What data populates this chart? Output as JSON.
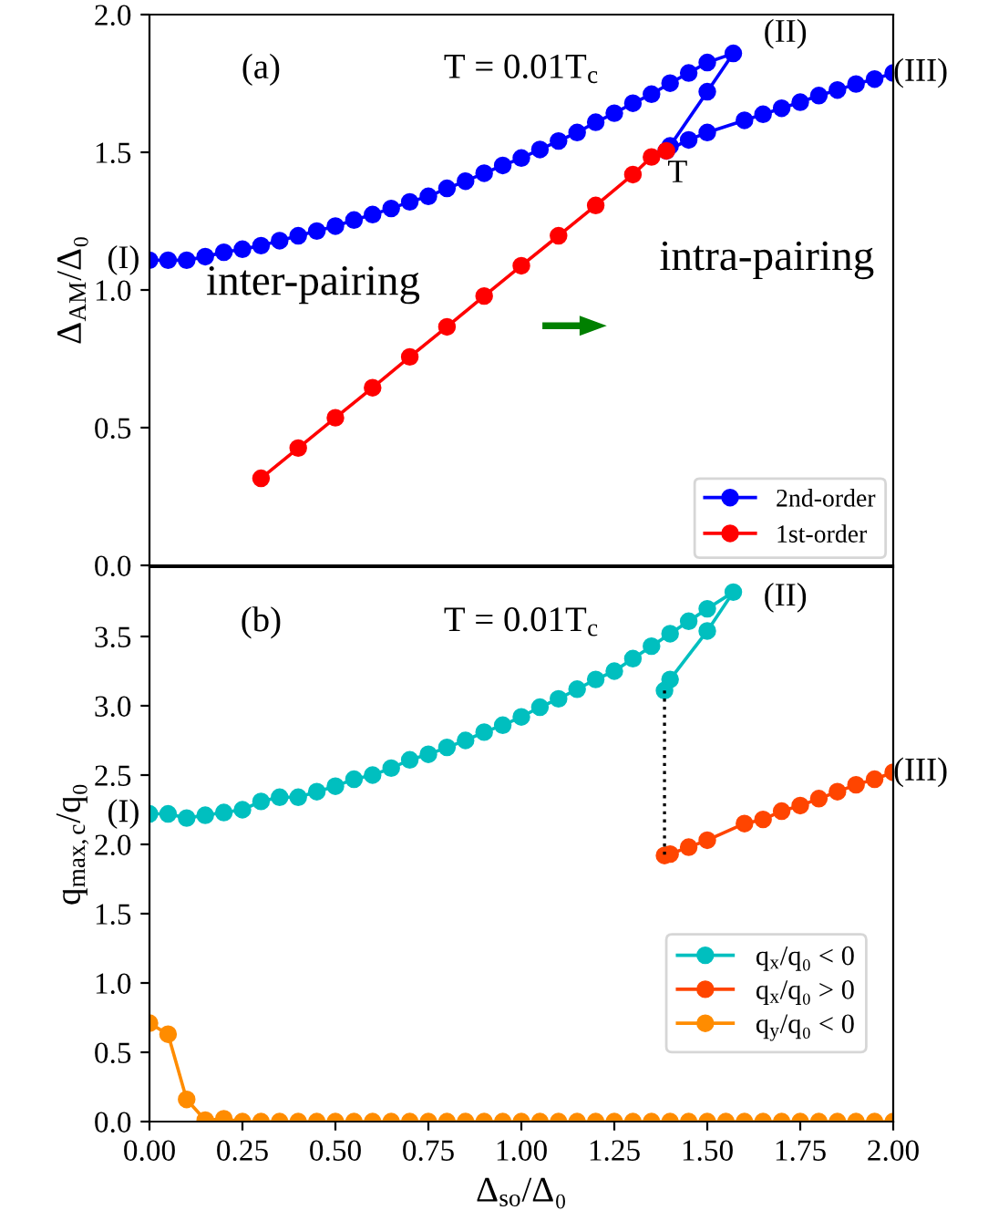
{
  "chart_data": [
    {
      "type": "line",
      "ylabel": "Δ$_{AM}$/Δ₀",
      "xlim": [
        0,
        2
      ],
      "ylim": [
        0,
        2
      ],
      "yticks": [
        {
          "value": 0,
          "label": "0.0"
        },
        {
          "value": 0.5,
          "label": "0.5"
        },
        {
          "value": 1,
          "label": "1.0"
        },
        {
          "value": 1.5,
          "label": "1.5"
        },
        {
          "value": 2,
          "label": "2.0"
        }
      ],
      "tick_labels": "y",
      "marker": "circle",
      "legend": "lower right",
      "grid": false,
      "series": [
        {
          "name": "2nd-order",
          "color": "#0000ff",
          "x": [
            0,
            0.05,
            0.1,
            0.15,
            0.2,
            0.25,
            0.3,
            0.35,
            0.4,
            0.45,
            0.5,
            0.55,
            0.6,
            0.65,
            0.7,
            0.75,
            0.8,
            0.85,
            0.9,
            0.95,
            1.0,
            1.05,
            1.1,
            1.15,
            1.2,
            1.25,
            1.3,
            1.35,
            1.4,
            1.45,
            1.5,
            1.57,
            1.5,
            1.4,
            1.39,
            1.45,
            1.5,
            1.6,
            1.65,
            1.7,
            1.75,
            1.8,
            1.85,
            1.9,
            1.95,
            2.0
          ],
          "values": [
            1.108,
            1.108,
            1.108,
            1.121,
            1.137,
            1.148,
            1.161,
            1.179,
            1.197,
            1.214,
            1.232,
            1.254,
            1.274,
            1.296,
            1.32,
            1.34,
            1.369,
            1.395,
            1.424,
            1.452,
            1.479,
            1.51,
            1.541,
            1.572,
            1.609,
            1.642,
            1.678,
            1.711,
            1.751,
            1.788,
            1.826,
            1.859,
            1.72,
            1.523,
            1.505,
            1.545,
            1.572,
            1.616,
            1.638,
            1.66,
            1.682,
            1.706,
            1.726,
            1.748,
            1.766,
            1.788
          ]
        },
        {
          "name": "1st-order",
          "color": "#ff0000",
          "x": [
            0.3,
            0.4,
            0.5,
            0.6,
            0.7,
            0.8,
            0.9,
            1.0,
            1.1,
            1.2,
            1.3,
            1.35,
            1.39
          ],
          "values": [
            0.316,
            0.426,
            0.536,
            0.645,
            0.757,
            0.866,
            0.978,
            1.088,
            1.197,
            1.307,
            1.419,
            1.483,
            1.505
          ]
        }
      ],
      "annotations": [
        "(a)",
        "T = 0.01T$_{c}$",
        "(II)",
        "T",
        "inter-pairing",
        "intra-pairing",
        "(I)",
        {
          "text": "(III)",
          "x": 2,
          "y": 1.788
        }
      ]
    },
    {
      "type": "line",
      "ylabel": "q$_{max,c}$/q₀",
      "xlabel": "Δ$_{so}$/Δ₀",
      "xlim": [
        0,
        2
      ],
      "ylim": [
        0,
        4
      ],
      "xticks": [
        {
          "value": 0,
          "label": "0.00"
        },
        {
          "value": 0.25,
          "label": "0.25"
        },
        {
          "value": 0.5,
          "label": "0.50"
        },
        {
          "value": 0.75,
          "label": "0.75"
        },
        {
          "value": 1,
          "label": "1.00"
        },
        {
          "value": 1.25,
          "label": "1.25"
        },
        {
          "value": 1.5,
          "label": "1.50"
        },
        {
          "value": 1.75,
          "label": "1.75"
        },
        {
          "value": 2,
          "label": "2.00"
        }
      ],
      "yticks": [
        {
          "value": 0,
          "label": "0.0"
        },
        {
          "value": 0.5,
          "label": "0.5"
        },
        {
          "value": 1,
          "label": "1.0"
        },
        {
          "value": 1.5,
          "label": "1.5"
        },
        {
          "value": 2,
          "label": "2.0"
        },
        {
          "value": 2.5,
          "label": "2.5"
        },
        {
          "value": 3,
          "label": "3.0"
        },
        {
          "value": 3.5,
          "label": "3.5"
        }
      ],
      "marker": "circle",
      "legend": "right",
      "grid": false,
      "series": [
        {
          "name": "q$_{x}$/q₀ < 0",
          "color": "#00bfbf",
          "x": [
            0,
            0.05,
            0.1,
            0.15,
            0.2,
            0.25,
            0.3,
            0.35,
            0.4,
            0.45,
            0.5,
            0.55,
            0.6,
            0.65,
            0.7,
            0.75,
            0.8,
            0.85,
            0.9,
            0.95,
            1.0,
            1.05,
            1.1,
            1.15,
            1.2,
            1.25,
            1.3,
            1.35,
            1.4,
            1.45,
            1.5,
            1.57,
            1.5,
            1.4,
            1.385
          ],
          "values": [
            2.22,
            2.22,
            2.19,
            2.21,
            2.23,
            2.25,
            2.31,
            2.34,
            2.34,
            2.38,
            2.42,
            2.47,
            2.5,
            2.55,
            2.61,
            2.65,
            2.7,
            2.75,
            2.81,
            2.86,
            2.92,
            2.99,
            3.05,
            3.12,
            3.19,
            3.25,
            3.34,
            3.43,
            3.52,
            3.61,
            3.7,
            3.82,
            3.54,
            3.19,
            3.11
          ]
        },
        {
          "name": "q$_{x}$/q₀ > 0",
          "color": "#ff4500",
          "x": [
            1.385,
            1.4,
            1.45,
            1.5,
            1.6,
            1.65,
            1.7,
            1.75,
            1.8,
            1.85,
            1.9,
            1.95,
            2.0
          ],
          "values": [
            1.92,
            1.93,
            1.98,
            2.03,
            2.15,
            2.18,
            2.24,
            2.28,
            2.33,
            2.38,
            2.43,
            2.47,
            2.52
          ]
        },
        {
          "name": "q$_{y}$/q₀ < 0",
          "color": "#ff8c00",
          "x": [
            0,
            0.05,
            0.1,
            0.15,
            0.2,
            0.25,
            0.3,
            0.35,
            0.4,
            0.45,
            0.5,
            0.55,
            0.6,
            0.65,
            0.7,
            0.75,
            0.8,
            0.85,
            0.9,
            0.95,
            1.0,
            1.05,
            1.1,
            1.15,
            1.2,
            1.25,
            1.3,
            1.35,
            1.4,
            1.45,
            1.5,
            1.55,
            1.6,
            1.65,
            1.7,
            1.75,
            1.8,
            1.85,
            1.9,
            1.95,
            2.0
          ],
          "values": [
            0.71,
            0.63,
            0.16,
            0.01,
            0.02,
            0,
            0,
            0,
            0,
            0,
            0,
            0,
            0,
            0,
            0,
            0,
            0,
            0,
            0,
            0,
            0,
            0,
            0,
            0,
            0,
            0,
            0,
            0,
            0,
            0,
            0,
            0,
            0,
            0,
            0,
            0,
            0,
            0,
            0,
            0,
            0
          ]
        },
        {
          "color": "#000000",
          "line_style": "dotted",
          "marker": "none",
          "x": [
            1.385,
            1.385
          ],
          "values": [
            3.11,
            1.92
          ]
        }
      ],
      "annotations": [
        "(b)",
        "T = 0.01T$_{c}$",
        "(II)",
        "(I)",
        {
          "text": "(III)",
          "x": 2,
          "y": 2.52
        }
      ]
    }
  ]
}
